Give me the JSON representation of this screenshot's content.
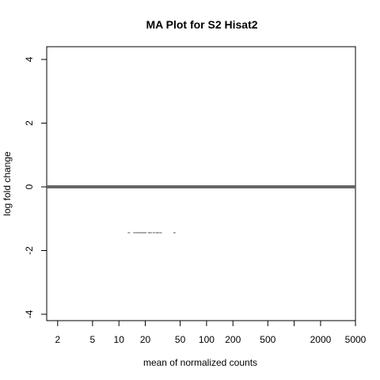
{
  "chart_data": {
    "type": "scatter",
    "title": "MA Plot for S2 Hisat2",
    "xlabel": "mean of normalized counts",
    "ylabel": "log fold change",
    "x_scale": "log",
    "xlim": [
      1.5,
      5000
    ],
    "ylim": [
      -4.2,
      4.4
    ],
    "x_ticks": [
      2,
      5,
      10,
      20,
      50,
      100,
      200,
      500,
      1000,
      2000,
      5000
    ],
    "x_tick_labels": [
      "2",
      "5",
      "10",
      "20",
      "50",
      "100",
      "200",
      "500",
      "",
      "2000",
      "5000"
    ],
    "y_ticks": [
      -4,
      -2,
      0,
      2,
      4
    ],
    "y_tick_labels": [
      "-4",
      "-2",
      "0",
      "2",
      "4"
    ],
    "reference_line": {
      "y": 0,
      "color": "#666666"
    },
    "points": [
      {
        "x": 13,
        "y": -1.44
      },
      {
        "x": 15,
        "y": -1.44
      },
      {
        "x": 16,
        "y": -1.44
      },
      {
        "x": 17,
        "y": -1.44
      },
      {
        "x": 18,
        "y": -1.44
      },
      {
        "x": 19,
        "y": -1.44
      },
      {
        "x": 20,
        "y": -1.44
      },
      {
        "x": 22,
        "y": -1.44
      },
      {
        "x": 23,
        "y": -1.44
      },
      {
        "x": 25,
        "y": -1.44
      },
      {
        "x": 27,
        "y": -1.44
      },
      {
        "x": 28,
        "y": -1.44
      },
      {
        "x": 30,
        "y": -1.44
      },
      {
        "x": 43,
        "y": -1.44
      }
    ],
    "point_color": "#888888",
    "grid": false,
    "legend": "none"
  }
}
